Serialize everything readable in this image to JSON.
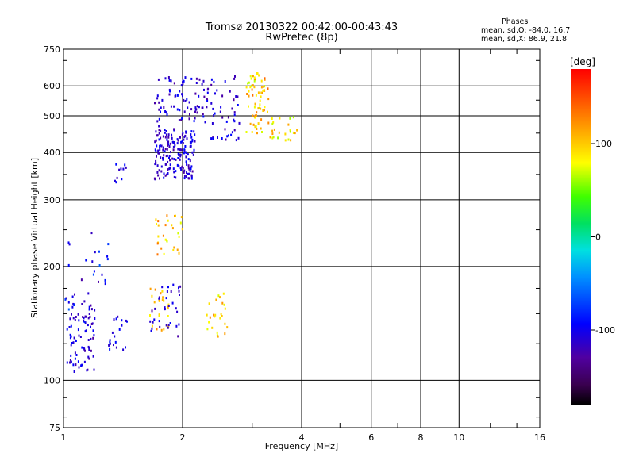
{
  "chart_data": {
    "type": "scatter",
    "title": "Tromsø 20130322 00:42:00-00:43:43",
    "subtitle": "RwPretec (8p)",
    "xlabel": "Frequency [MHz]",
    "ylabel": "Stationary phase Virtual Height [km]",
    "x_scale": "log",
    "y_scale": "log",
    "xlim": [
      1,
      16
    ],
    "ylim": [
      75,
      750
    ],
    "x_ticks": [
      1,
      2,
      4,
      6,
      8,
      10,
      16
    ],
    "y_ticks": [
      75,
      100,
      200,
      300,
      400,
      500,
      600,
      750
    ],
    "grid": true,
    "colorbar": {
      "label": "[deg]",
      "range": [
        -180,
        180
      ],
      "ticks": [
        100,
        0,
        -100
      ]
    },
    "stats": {
      "header": "Phases",
      "line1": "mean, sd,O: -84.0, 16.7",
      "line2": "mean, sd,X:  86.9, 21.8"
    },
    "clusters": [
      {
        "f": [
          1.0,
          1.2
        ],
        "h": [
          105,
          170
        ],
        "n": 90,
        "phase": [
          -130,
          -90
        ]
      },
      {
        "f": [
          1.0,
          1.3
        ],
        "h": [
          140,
          260
        ],
        "n": 25,
        "phase": [
          -130,
          -60
        ]
      },
      {
        "f": [
          1.3,
          1.45
        ],
        "h": [
          120,
          150
        ],
        "n": 20,
        "phase": [
          -120,
          -80
        ]
      },
      {
        "f": [
          1.7,
          2.15
        ],
        "h": [
          340,
          460
        ],
        "n": 170,
        "phase": [
          -130,
          -90
        ]
      },
      {
        "f": [
          1.7,
          2.3
        ],
        "h": [
          450,
          640
        ],
        "n": 80,
        "phase": [
          -130,
          -90
        ]
      },
      {
        "f": [
          2.3,
          2.8
        ],
        "h": [
          430,
          640
        ],
        "n": 50,
        "phase": [
          -130,
          -90
        ]
      },
      {
        "f": [
          2.9,
          3.3
        ],
        "h": [
          450,
          650
        ],
        "n": 70,
        "phase": [
          60,
          140
        ]
      },
      {
        "f": [
          3.3,
          3.9
        ],
        "h": [
          430,
          500
        ],
        "n": 25,
        "phase": [
          60,
          120
        ]
      },
      {
        "f": [
          1.7,
          2.0
        ],
        "h": [
          215,
          275
        ],
        "n": 30,
        "phase": [
          70,
          140
        ]
      },
      {
        "f": [
          1.65,
          1.85
        ],
        "h": [
          135,
          175
        ],
        "n": 25,
        "phase": [
          80,
          130
        ]
      },
      {
        "f": [
          1.65,
          2.0
        ],
        "h": [
          130,
          180
        ],
        "n": 35,
        "phase": [
          -130,
          -90
        ]
      },
      {
        "f": [
          2.3,
          2.6
        ],
        "h": [
          130,
          170
        ],
        "n": 25,
        "phase": [
          70,
          130
        ]
      },
      {
        "f": [
          1.35,
          1.45
        ],
        "h": [
          330,
          380
        ],
        "n": 10,
        "phase": [
          -120,
          -90
        ]
      }
    ]
  }
}
